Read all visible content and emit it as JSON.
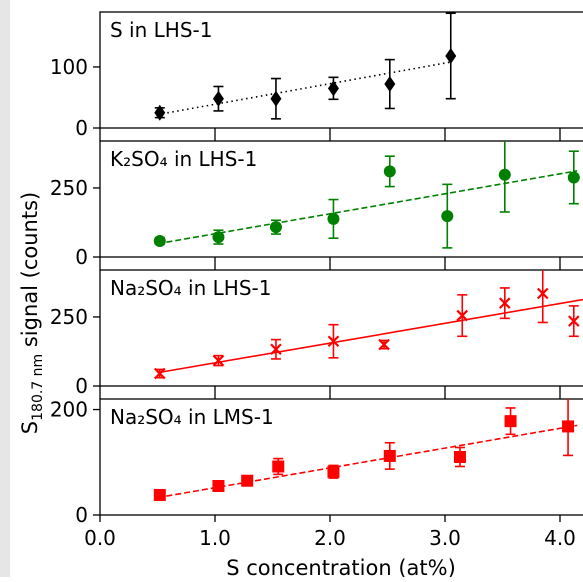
{
  "chart_data": {
    "type": "scatter",
    "shared_x": {
      "xlabel": "S concentration (at%)",
      "xlim": [
        0.0,
        4.2
      ],
      "ticks": [
        0.0,
        1.0,
        2.0,
        3.0,
        4.0
      ],
      "tick_labels": [
        "0.0",
        "1.0",
        "2.0",
        "3.0",
        "4.0"
      ]
    },
    "shared_ylabel": {
      "prefix": "S",
      "subscript": "180.7 nm",
      "suffix": " signal (counts)"
    },
    "panels": [
      {
        "label": "S in LHS-1",
        "ylim": [
          0,
          190
        ],
        "yticks": [
          0,
          100
        ],
        "ytick_labels": [
          "0",
          "100"
        ],
        "marker": "diamond",
        "line_style": "dotted",
        "color": "#000000",
        "points": [
          {
            "x": 0.52,
            "y": 25,
            "err": 8
          },
          {
            "x": 1.03,
            "y": 48,
            "err": 20
          },
          {
            "x": 1.53,
            "y": 48,
            "err": 33
          },
          {
            "x": 2.03,
            "y": 65,
            "err": 18
          },
          {
            "x": 2.52,
            "y": 72,
            "err": 40
          },
          {
            "x": 3.05,
            "y": 118,
            "err": 70
          }
        ],
        "fit": [
          [
            0.5,
            22
          ],
          [
            3.05,
            108
          ]
        ]
      },
      {
        "label": "K₂SO₄ in LHS-1",
        "ylim": [
          0,
          420
        ],
        "yticks": [
          0,
          250
        ],
        "ytick_labels": [
          "0",
          "250"
        ],
        "marker": "circle",
        "line_style": "dashed",
        "color": "#008000",
        "points": [
          {
            "x": 0.52,
            "y": 58,
            "err": 12
          },
          {
            "x": 1.03,
            "y": 72,
            "err": 25
          },
          {
            "x": 1.53,
            "y": 108,
            "err": 25
          },
          {
            "x": 2.03,
            "y": 138,
            "err": 70
          },
          {
            "x": 2.52,
            "y": 310,
            "err": 55
          },
          {
            "x": 3.02,
            "y": 148,
            "err": 115
          },
          {
            "x": 3.52,
            "y": 298,
            "err": 135
          },
          {
            "x": 4.12,
            "y": 288,
            "err": 95
          }
        ],
        "fit": [
          [
            0.5,
            48
          ],
          [
            4.15,
            312
          ]
        ]
      },
      {
        "label": "Na₂SO₄ in LHS-1",
        "ylim": [
          0,
          420
        ],
        "yticks": [
          0,
          250
        ],
        "ytick_labels": [
          "0",
          "250"
        ],
        "marker": "x",
        "line_style": "solid",
        "color": "#ff0000",
        "points": [
          {
            "x": 0.52,
            "y": 45,
            "err": 15
          },
          {
            "x": 1.03,
            "y": 92,
            "err": 18
          },
          {
            "x": 1.53,
            "y": 133,
            "err": 35
          },
          {
            "x": 2.03,
            "y": 162,
            "err": 60
          },
          {
            "x": 2.47,
            "y": 150,
            "err": 15
          },
          {
            "x": 3.15,
            "y": 255,
            "err": 75
          },
          {
            "x": 3.52,
            "y": 300,
            "err": 55
          },
          {
            "x": 3.85,
            "y": 335,
            "err": 105
          },
          {
            "x": 4.12,
            "y": 235,
            "err": 55
          }
        ],
        "fit": [
          [
            0.5,
            48
          ],
          [
            4.2,
            313
          ]
        ]
      },
      {
        "label": "Na₂SO₄ in LMS-1",
        "ylim": [
          0,
          220
        ],
        "yticks": [
          0,
          200
        ],
        "ytick_labels": [
          "0",
          "200"
        ],
        "marker": "square",
        "line_style": "dashed",
        "color": "#ff0000",
        "points": [
          {
            "x": 0.52,
            "y": 38,
            "err": 5
          },
          {
            "x": 1.03,
            "y": 55,
            "err": 6
          },
          {
            "x": 1.28,
            "y": 65,
            "err": 6
          },
          {
            "x": 1.55,
            "y": 92,
            "err": 15
          },
          {
            "x": 2.03,
            "y": 82,
            "err": 12
          },
          {
            "x": 2.52,
            "y": 112,
            "err": 25
          },
          {
            "x": 3.13,
            "y": 110,
            "err": 18
          },
          {
            "x": 3.57,
            "y": 178,
            "err": 25
          },
          {
            "x": 4.07,
            "y": 168,
            "err": 55
          }
        ],
        "fit": [
          [
            0.5,
            33
          ],
          [
            4.15,
            170
          ]
        ]
      }
    ]
  }
}
